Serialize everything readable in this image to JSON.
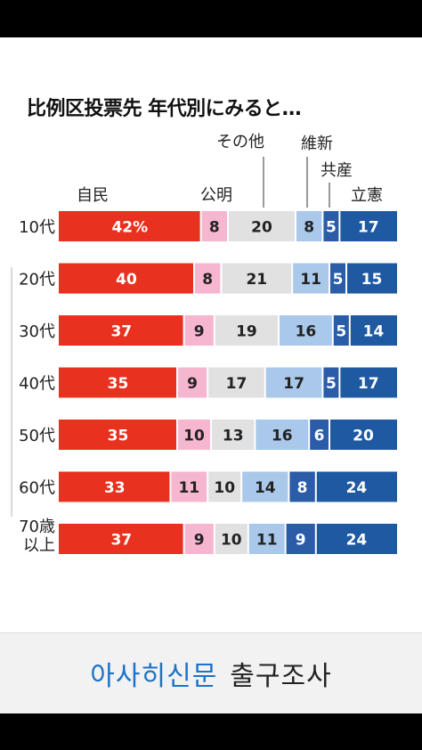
{
  "footer": {
    "paper": "아사히신문",
    "survey": "출구조사"
  },
  "colors": {
    "jimin": "#e8311f",
    "komei": "#f6b6cf",
    "sonota": "#e1e1e1",
    "ishin": "#a9c8ea",
    "kyosan": "#2a5ca8",
    "rikken": "#1f59a2",
    "separator": "#ffffff"
  },
  "chart_data": {
    "type": "bar",
    "orientation": "horizontal",
    "stacked": true,
    "title": "比例区投票先 年代別にみると…",
    "categories": [
      "10代",
      "20代",
      "30代",
      "40代",
      "50代",
      "60代",
      "70歳以上"
    ],
    "category_lines": [
      [
        "10代"
      ],
      [
        "20代"
      ],
      [
        "30代"
      ],
      [
        "40代"
      ],
      [
        "50代"
      ],
      [
        "60代"
      ],
      [
        "70歳",
        "以上"
      ]
    ],
    "series": [
      {
        "name": "自民",
        "key": "jimin",
        "values": [
          42,
          40,
          37,
          35,
          35,
          33,
          37
        ],
        "labels": [
          "42%",
          "40",
          "37",
          "35",
          "35",
          "33",
          "37"
        ]
      },
      {
        "name": "公明",
        "key": "komei",
        "values": [
          8,
          8,
          9,
          9,
          10,
          11,
          9
        ],
        "labels": [
          "8",
          "8",
          "9",
          "9",
          "10",
          "11",
          "9"
        ]
      },
      {
        "name": "その他",
        "key": "sonota",
        "values": [
          20,
          21,
          19,
          17,
          13,
          10,
          10
        ],
        "labels": [
          "20",
          "21",
          "19",
          "17",
          "13",
          "10",
          "10"
        ]
      },
      {
        "name": "維新",
        "key": "ishin",
        "values": [
          8,
          11,
          16,
          17,
          16,
          14,
          11
        ],
        "labels": [
          "8",
          "11",
          "16",
          "17",
          "16",
          "14",
          "11"
        ]
      },
      {
        "name": "共産",
        "key": "kyosan",
        "values": [
          5,
          5,
          5,
          5,
          6,
          8,
          9
        ],
        "labels": [
          "5",
          "5",
          "5",
          "5",
          "6",
          "8",
          "9"
        ]
      },
      {
        "name": "立憲",
        "key": "rikken",
        "values": [
          17,
          15,
          14,
          17,
          20,
          24,
          24
        ],
        "labels": [
          "17",
          "15",
          "14",
          "17",
          "20",
          "24",
          "24"
        ]
      }
    ],
    "xlim": [
      0,
      100
    ],
    "legend": "top, above bars with leader lines",
    "grid": false
  }
}
